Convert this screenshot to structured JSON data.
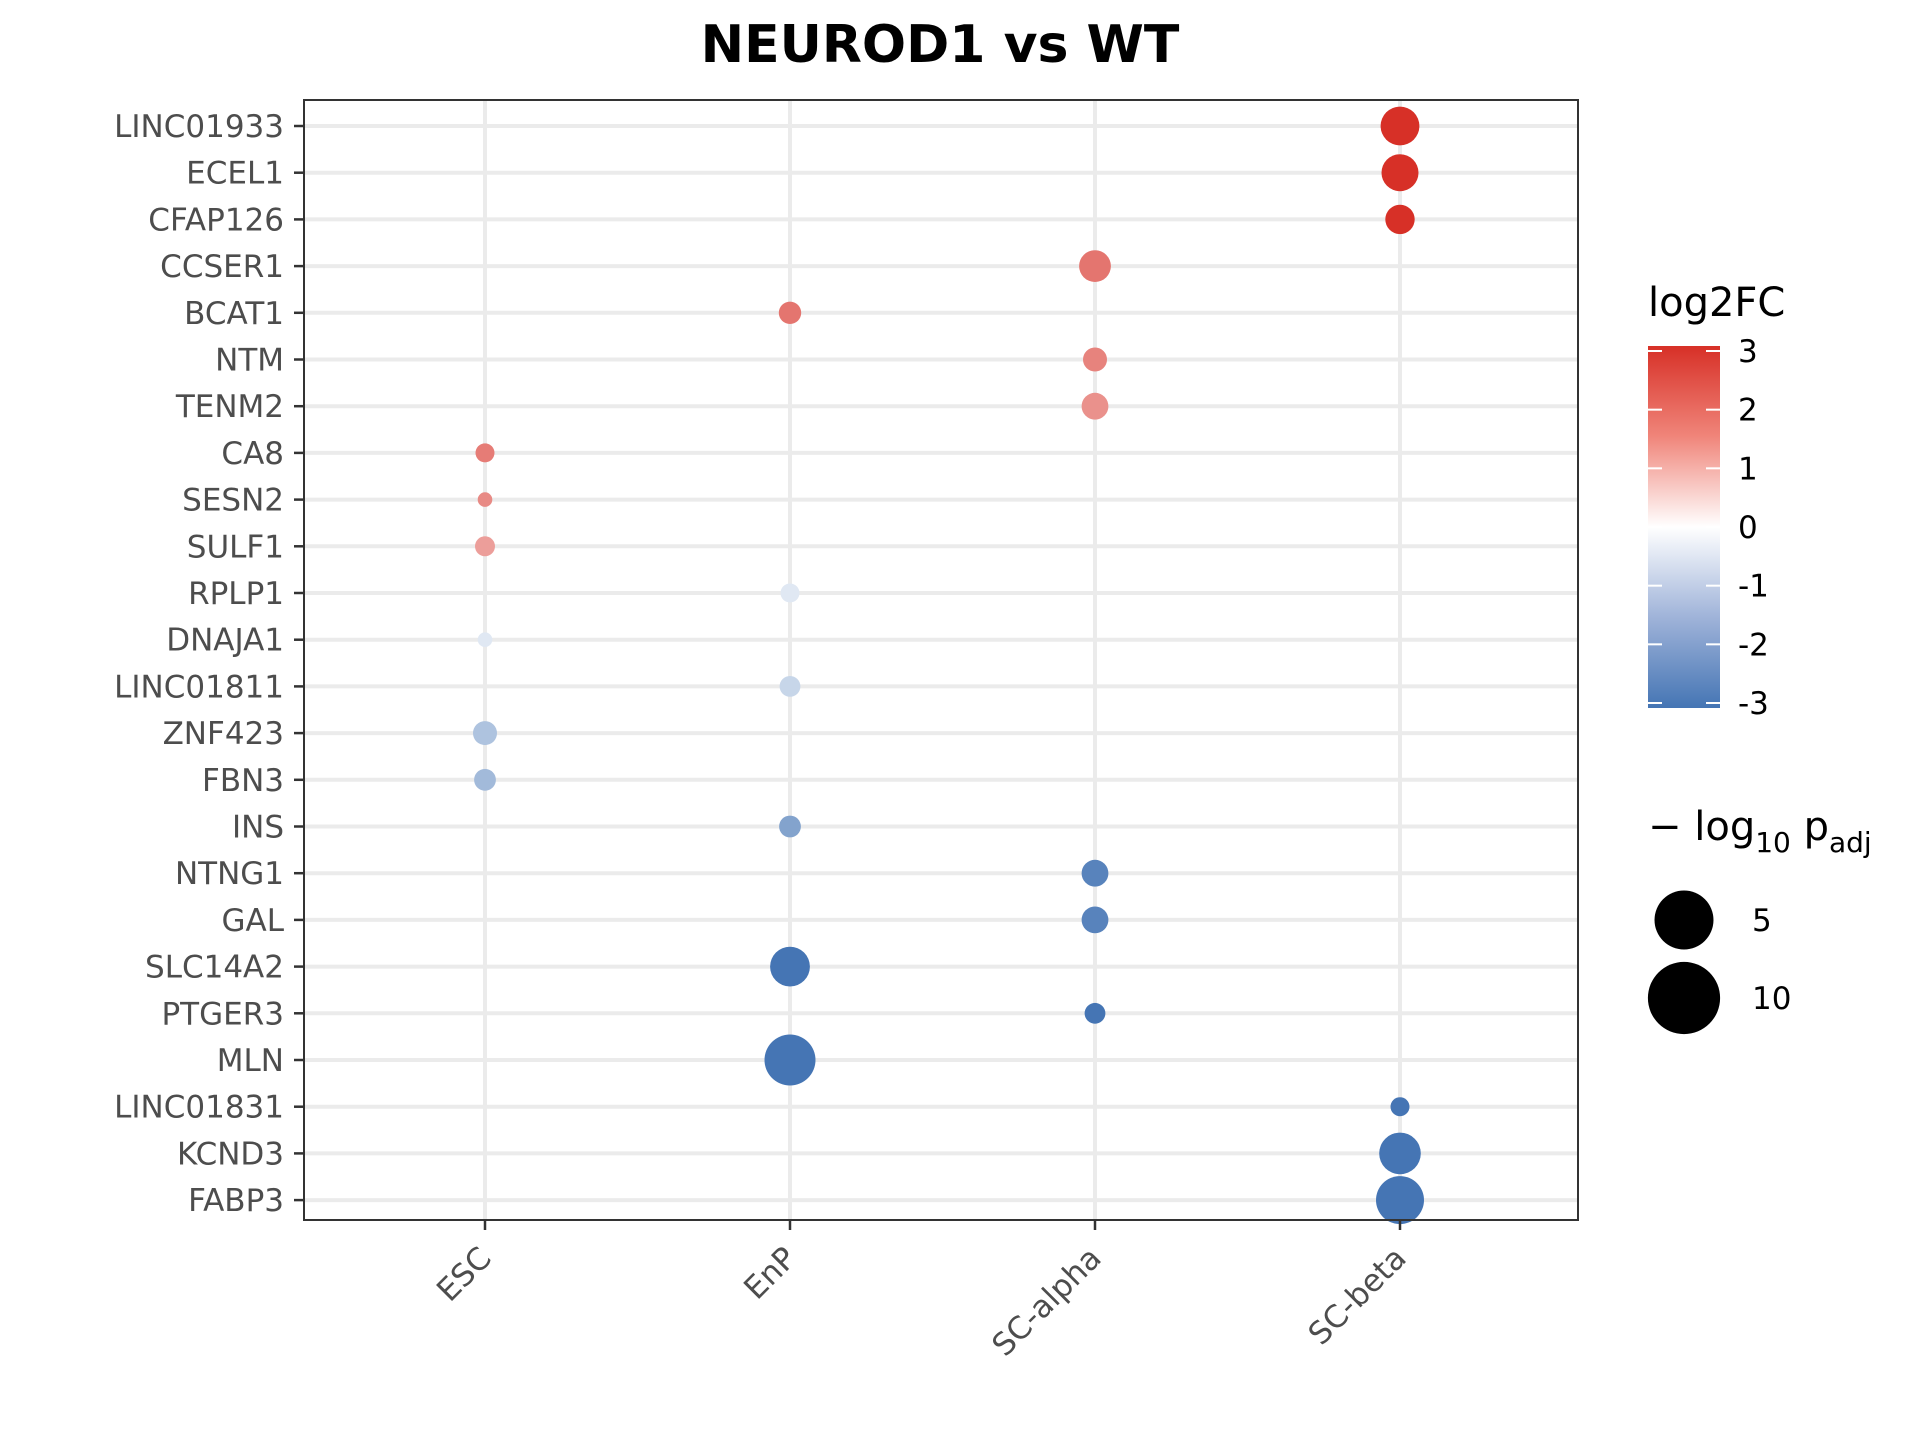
{
  "chart_data": {
    "type": "scatter",
    "title": "NEUROD1 vs WT",
    "x_categories": [
      "ESC",
      "EnP",
      "SC-alpha",
      "SC-beta"
    ],
    "y_categories": [
      "LINC01933",
      "ECEL1",
      "CFAP126",
      "CCSER1",
      "BCAT1",
      "NTM",
      "TENM2",
      "CA8",
      "SESN2",
      "SULF1",
      "RPLP1",
      "DNAJA1",
      "LINC01811",
      "ZNF423",
      "FBN3",
      "INS",
      "NTNG1",
      "GAL",
      "SLC14A2",
      "PTGER3",
      "MLN",
      "LINC01831",
      "KCND3",
      "FABP3"
    ],
    "points": [
      {
        "gene": "LINC01933",
        "cell": "SC-beta",
        "log2FC": 3.0,
        "neglog10padj": 10.5
      },
      {
        "gene": "ECEL1",
        "cell": "SC-beta",
        "log2FC": 3.0,
        "neglog10padj": 9.5
      },
      {
        "gene": "CFAP126",
        "cell": "SC-beta",
        "log2FC": 3.0,
        "neglog10padj": 6.0
      },
      {
        "gene": "CCSER1",
        "cell": "SC-alpha",
        "log2FC": 2.0,
        "neglog10padj": 7.0
      },
      {
        "gene": "BCAT1",
        "cell": "EnP",
        "log2FC": 2.0,
        "neglog10padj": 3.5
      },
      {
        "gene": "NTM",
        "cell": "SC-alpha",
        "log2FC": 1.8,
        "neglog10padj": 4.0
      },
      {
        "gene": "TENM2",
        "cell": "SC-alpha",
        "log2FC": 1.6,
        "neglog10padj": 5.0
      },
      {
        "gene": "CA8",
        "cell": "ESC",
        "log2FC": 1.9,
        "neglog10padj": 2.5
      },
      {
        "gene": "SESN2",
        "cell": "ESC",
        "log2FC": 1.7,
        "neglog10padj": 1.5
      },
      {
        "gene": "SULF1",
        "cell": "ESC",
        "log2FC": 1.4,
        "neglog10padj": 2.8
      },
      {
        "gene": "RPLP1",
        "cell": "EnP",
        "log2FC": -0.5,
        "neglog10padj": 2.5
      },
      {
        "gene": "DNAJA1",
        "cell": "ESC",
        "log2FC": -0.5,
        "neglog10padj": 1.5
      },
      {
        "gene": "LINC01811",
        "cell": "EnP",
        "log2FC": -0.9,
        "neglog10padj": 3.0
      },
      {
        "gene": "ZNF423",
        "cell": "ESC",
        "log2FC": -1.3,
        "neglog10padj": 4.0
      },
      {
        "gene": "FBN3",
        "cell": "ESC",
        "log2FC": -1.5,
        "neglog10padj": 3.3
      },
      {
        "gene": "INS",
        "cell": "EnP",
        "log2FC": -2.0,
        "neglog10padj": 3.3
      },
      {
        "gene": "NTNG1",
        "cell": "SC-alpha",
        "log2FC": -2.7,
        "neglog10padj": 5.0
      },
      {
        "gene": "GAL",
        "cell": "SC-alpha",
        "log2FC": -2.7,
        "neglog10padj": 5.0
      },
      {
        "gene": "SLC14A2",
        "cell": "EnP",
        "log2FC": -3.0,
        "neglog10padj": 11.0
      },
      {
        "gene": "PTGER3",
        "cell": "SC-alpha",
        "log2FC": -3.0,
        "neglog10padj": 3.0
      },
      {
        "gene": "MLN",
        "cell": "EnP",
        "log2FC": -3.0,
        "neglog10padj": 18.0
      },
      {
        "gene": "LINC01831",
        "cell": "SC-beta",
        "log2FC": -3.0,
        "neglog10padj": 2.5
      },
      {
        "gene": "KCND3",
        "cell": "SC-beta",
        "log2FC": -3.0,
        "neglog10padj": 12.0
      },
      {
        "gene": "FABP3",
        "cell": "SC-beta",
        "log2FC": -3.0,
        "neglog10padj": 16.0
      }
    ],
    "color_legend": {
      "title": "log2FC",
      "range": [
        -3,
        3
      ],
      "ticks": [
        "3",
        "2",
        "1",
        "0",
        "-1",
        "-2",
        "-3"
      ],
      "colors": {
        "low": "#4575b4",
        "mid": "#ffffff",
        "high": "#d73027"
      }
    },
    "size_legend": {
      "title_main": "− log",
      "title_sub": "10",
      "title_p": " p",
      "title_padj": "adj",
      "entries": [
        {
          "label": "5",
          "value": 5
        },
        {
          "label": "10",
          "value": 10
        }
      ]
    },
    "grid": true,
    "legend_position": "right"
  }
}
